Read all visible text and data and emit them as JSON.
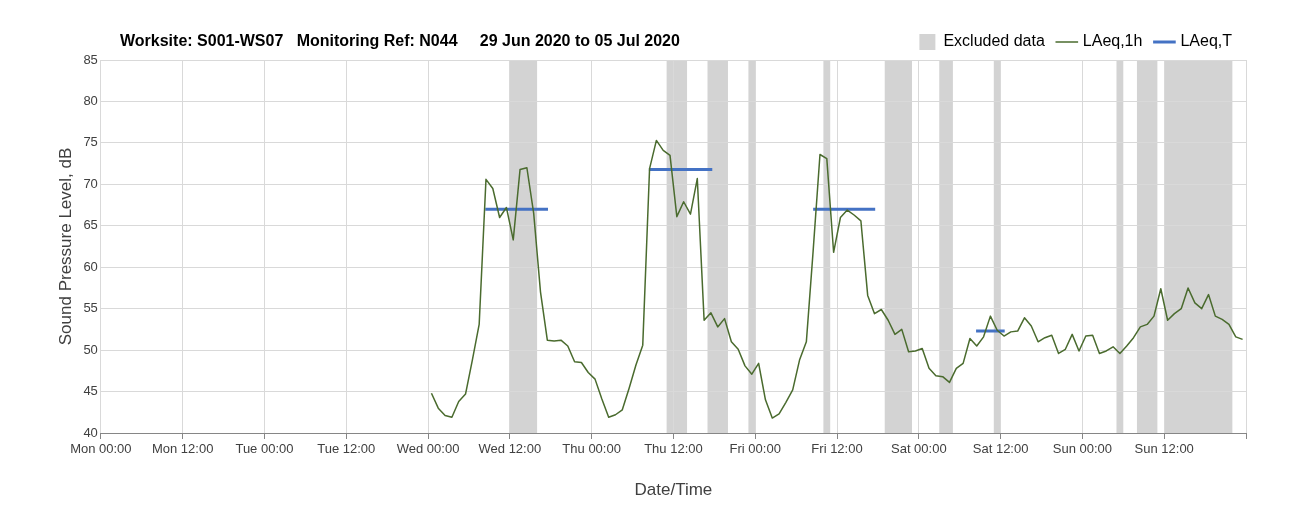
{
  "chart_data": {
    "type": "line",
    "title": "Worksite: S001-WS07   Monitoring Ref: N044     29 Jun 2020 to 05 Jul 2020",
    "xlabel": "Date/Time",
    "ylabel": "Sound Pressure Level, dB",
    "xlim": [
      "2020-06-29T00:00",
      "2020-07-06T00:00"
    ],
    "xticks": [
      {
        "value": "2020-06-29T00:00",
        "label": "Mon 00:00"
      },
      {
        "value": "2020-06-29T12:00",
        "label": "Mon 12:00"
      },
      {
        "value": "2020-06-30T00:00",
        "label": "Tue 00:00"
      },
      {
        "value": "2020-06-30T12:00",
        "label": "Tue 12:00"
      },
      {
        "value": "2020-07-01T00:00",
        "label": "Wed 00:00"
      },
      {
        "value": "2020-07-01T12:00",
        "label": "Wed 12:00"
      },
      {
        "value": "2020-07-02T00:00",
        "label": "Thu 00:00"
      },
      {
        "value": "2020-07-02T12:00",
        "label": "Thu 12:00"
      },
      {
        "value": "2020-07-03T00:00",
        "label": "Fri 00:00"
      },
      {
        "value": "2020-07-03T12:00",
        "label": "Fri 12:00"
      },
      {
        "value": "2020-07-04T00:00",
        "label": "Sat 00:00"
      },
      {
        "value": "2020-07-04T12:00",
        "label": "Sat 12:00"
      },
      {
        "value": "2020-07-05T00:00",
        "label": "Sun 00:00"
      },
      {
        "value": "2020-07-05T12:00",
        "label": "Sun 12:00"
      },
      {
        "value": "2020-07-06T00:00",
        "label": null
      }
    ],
    "ylim": [
      40,
      85
    ],
    "yticks": [
      40,
      45,
      50,
      55,
      60,
      65,
      70,
      75,
      80,
      85
    ],
    "grid": true,
    "legend": "top right",
    "marker": "none",
    "line_style": "solid",
    "x": [
      "2020-07-01T00:30",
      "2020-07-01T01:30",
      "2020-07-01T02:30",
      "2020-07-01T03:30",
      "2020-07-01T04:30",
      "2020-07-01T05:30",
      "2020-07-01T06:30",
      "2020-07-01T07:30",
      "2020-07-01T08:30",
      "2020-07-01T09:30",
      "2020-07-01T10:30",
      "2020-07-01T11:30",
      "2020-07-01T12:30",
      "2020-07-01T13:30",
      "2020-07-01T14:30",
      "2020-07-01T15:30",
      "2020-07-01T16:30",
      "2020-07-01T17:30",
      "2020-07-01T18:30",
      "2020-07-01T19:30",
      "2020-07-01T20:30",
      "2020-07-01T21:30",
      "2020-07-01T22:30",
      "2020-07-01T23:30",
      "2020-07-02T00:30",
      "2020-07-02T01:30",
      "2020-07-02T02:30",
      "2020-07-02T03:30",
      "2020-07-02T04:30",
      "2020-07-02T05:30",
      "2020-07-02T06:30",
      "2020-07-02T07:30",
      "2020-07-02T08:30",
      "2020-07-02T09:30",
      "2020-07-02T10:30",
      "2020-07-02T11:30",
      "2020-07-02T12:30",
      "2020-07-02T13:30",
      "2020-07-02T14:30",
      "2020-07-02T15:30",
      "2020-07-02T16:30",
      "2020-07-02T17:30",
      "2020-07-02T18:30",
      "2020-07-02T19:30",
      "2020-07-02T20:30",
      "2020-07-02T21:30",
      "2020-07-02T22:30",
      "2020-07-02T23:30",
      "2020-07-03T00:30",
      "2020-07-03T01:30",
      "2020-07-03T02:30",
      "2020-07-03T03:30",
      "2020-07-03T04:30",
      "2020-07-03T05:30",
      "2020-07-03T06:30",
      "2020-07-03T07:30",
      "2020-07-03T08:30",
      "2020-07-03T09:30",
      "2020-07-03T10:30",
      "2020-07-03T11:30",
      "2020-07-03T12:30",
      "2020-07-03T13:30",
      "2020-07-03T14:30",
      "2020-07-03T15:30",
      "2020-07-03T16:30",
      "2020-07-03T17:30",
      "2020-07-03T18:30",
      "2020-07-03T19:30",
      "2020-07-03T20:30",
      "2020-07-03T21:30",
      "2020-07-03T22:30",
      "2020-07-03T23:30",
      "2020-07-04T00:30",
      "2020-07-04T01:30",
      "2020-07-04T02:30",
      "2020-07-04T03:30",
      "2020-07-04T04:30",
      "2020-07-04T05:30",
      "2020-07-04T06:30",
      "2020-07-04T07:30",
      "2020-07-04T08:30",
      "2020-07-04T09:30",
      "2020-07-04T10:30",
      "2020-07-04T11:30",
      "2020-07-04T12:30",
      "2020-07-04T13:30",
      "2020-07-04T14:30",
      "2020-07-04T15:30",
      "2020-07-04T16:30",
      "2020-07-04T17:30",
      "2020-07-04T18:30",
      "2020-07-04T19:30",
      "2020-07-04T20:30",
      "2020-07-04T21:30",
      "2020-07-04T22:30",
      "2020-07-04T23:30",
      "2020-07-05T00:30",
      "2020-07-05T01:30",
      "2020-07-05T02:30",
      "2020-07-05T03:30",
      "2020-07-05T04:30",
      "2020-07-05T05:30",
      "2020-07-05T06:30",
      "2020-07-05T07:30",
      "2020-07-05T08:30",
      "2020-07-05T09:30",
      "2020-07-05T10:30",
      "2020-07-05T11:30",
      "2020-07-05T12:30",
      "2020-07-05T13:30",
      "2020-07-05T14:30",
      "2020-07-05T15:30",
      "2020-07-05T16:30",
      "2020-07-05T17:30",
      "2020-07-05T18:30",
      "2020-07-05T19:30",
      "2020-07-05T20:30",
      "2020-07-05T21:30",
      "2020-07-05T22:30",
      "2020-07-05T23:30"
    ],
    "series": [
      {
        "name": "LAeq,1h",
        "color": "#4a6b2e",
        "values": [
          44.8,
          43.0,
          42.1,
          41.9,
          43.8,
          44.7,
          48.8,
          53.1,
          70.6,
          69.5,
          66.0,
          67.2,
          63.3,
          71.8,
          72.0,
          66.5,
          57.0,
          51.2,
          51.1,
          51.2,
          50.5,
          48.6,
          48.5,
          47.3,
          46.5,
          44.1,
          41.9,
          42.2,
          42.8,
          45.4,
          48.2,
          50.6,
          71.9,
          75.3,
          74.1,
          73.5,
          66.1,
          67.9,
          66.4,
          70.7,
          53.6,
          54.5,
          52.8,
          53.8,
          51.0,
          50.1,
          48.1,
          47.1,
          48.4,
          44.0,
          41.8,
          42.3,
          43.7,
          45.2,
          48.8,
          51.0,
          62.0,
          73.6,
          73.1,
          61.8,
          66.0,
          66.9,
          66.3,
          65.6,
          56.6,
          54.4,
          54.9,
          53.6,
          51.9,
          52.5,
          49.8,
          49.9,
          50.2,
          47.8,
          46.9,
          46.8,
          46.1,
          47.8,
          48.4,
          51.4,
          50.5,
          51.6,
          54.1,
          52.4,
          51.7,
          52.2,
          52.3,
          53.9,
          52.9,
          51.0,
          51.5,
          51.8,
          49.6,
          50.1,
          51.9,
          49.9,
          51.7,
          51.8,
          49.6,
          49.9,
          50.4,
          49.6,
          50.5,
          51.5,
          52.8,
          53.1,
          54.1,
          57.4,
          53.6,
          54.4,
          55.0,
          57.5,
          55.7,
          55.0,
          56.7,
          54.1,
          53.7,
          53.1,
          51.6,
          51.3
        ]
      },
      {
        "name": "LAeq,T",
        "color": "#4472c4",
        "x": [
          "2020-07-01T08:24",
          "2020-07-01T17:36",
          "2020-07-02T01:00",
          "2020-07-02T08:24",
          "2020-07-02T17:42",
          "2020-07-03T01:00",
          "2020-07-03T08:30",
          "2020-07-03T17:36",
          "2020-07-04T01:00",
          "2020-07-04T08:24",
          "2020-07-04T12:36"
        ],
        "values": [
          67.0,
          67.0,
          null,
          71.8,
          71.8,
          null,
          67.0,
          67.0,
          null,
          52.3,
          52.3
        ]
      }
    ],
    "bands": [
      {
        "axis": "x",
        "from": "2020-07-01T12:00",
        "to": "2020-07-01T16:00",
        "label": "Excluded data",
        "color": "#d3d3d3"
      },
      {
        "axis": "x",
        "from": "2020-07-02T11:00",
        "to": "2020-07-02T14:00",
        "color": "#d3d3d3"
      },
      {
        "axis": "x",
        "from": "2020-07-02T17:00",
        "to": "2020-07-02T20:00",
        "color": "#d3d3d3"
      },
      {
        "axis": "x",
        "from": "2020-07-02T23:00",
        "to": "2020-07-03T00:00",
        "color": "#d3d3d3"
      },
      {
        "axis": "x",
        "from": "2020-07-03T10:00",
        "to": "2020-07-03T11:00",
        "color": "#d3d3d3"
      },
      {
        "axis": "x",
        "from": "2020-07-03T19:00",
        "to": "2020-07-03T23:00",
        "color": "#d3d3d3"
      },
      {
        "axis": "x",
        "from": "2020-07-04T03:00",
        "to": "2020-07-04T05:00",
        "color": "#d3d3d3"
      },
      {
        "axis": "x",
        "from": "2020-07-04T11:00",
        "to": "2020-07-04T12:00",
        "color": "#d3d3d3"
      },
      {
        "axis": "x",
        "from": "2020-07-05T05:00",
        "to": "2020-07-05T06:00",
        "color": "#d3d3d3"
      },
      {
        "axis": "x",
        "from": "2020-07-05T08:00",
        "to": "2020-07-05T11:00",
        "color": "#d3d3d3"
      },
      {
        "axis": "x",
        "from": "2020-07-05T12:00",
        "to": "2020-07-05T22:00",
        "color": "#d3d3d3"
      }
    ]
  }
}
